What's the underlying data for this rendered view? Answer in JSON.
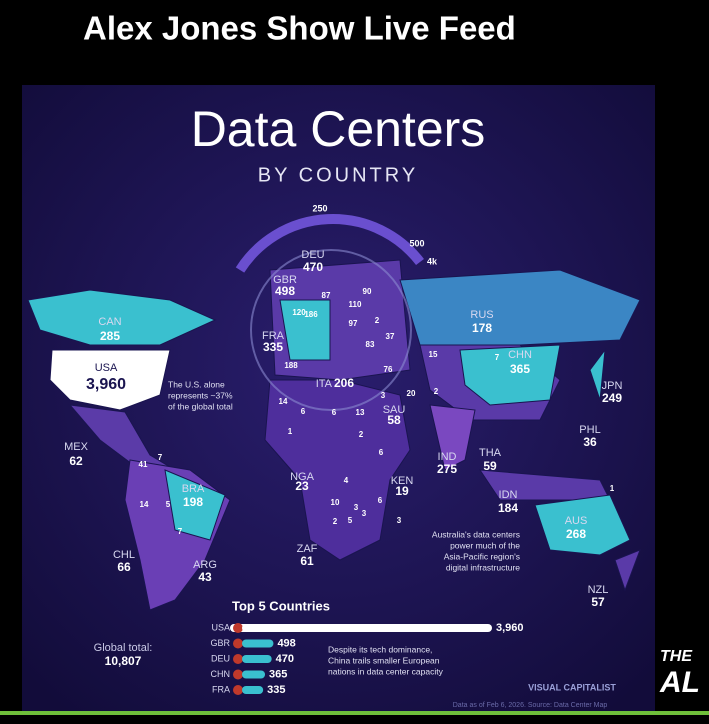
{
  "header": {
    "title": "Alex Jones Show Live Feed"
  },
  "infographic": {
    "title": "Data Centers",
    "subtitle": "BY COUNTRY",
    "scale_labels": [
      "250",
      "500",
      "4k"
    ],
    "countries": [
      {
        "code": "CAN",
        "value": "285"
      },
      {
        "code": "USA",
        "value": "3,960"
      },
      {
        "code": "MEX",
        "value": "62"
      },
      {
        "code": "BRA",
        "value": "198"
      },
      {
        "code": "CHL",
        "value": "66"
      },
      {
        "code": "ARG",
        "value": "43"
      },
      {
        "code": "GBR",
        "value": "498"
      },
      {
        "code": "DEU",
        "value": "470"
      },
      {
        "code": "FRA",
        "value": "335"
      },
      {
        "code": "ITA",
        "value": "206"
      },
      {
        "code": "RUS",
        "value": "178"
      },
      {
        "code": "CHN",
        "value": "365"
      },
      {
        "code": "JPN",
        "value": "249"
      },
      {
        "code": "PHL",
        "value": "36"
      },
      {
        "code": "IND",
        "value": "275"
      },
      {
        "code": "THA",
        "value": "59"
      },
      {
        "code": "IDN",
        "value": "184"
      },
      {
        "code": "AUS",
        "value": "268"
      },
      {
        "code": "NZL",
        "value": "57"
      },
      {
        "code": "SAU",
        "value": "58"
      },
      {
        "code": "ZAF",
        "value": "61"
      },
      {
        "code": "NGA",
        "value": "23"
      },
      {
        "code": "KEN",
        "value": "19"
      }
    ],
    "small_values": [
      "87",
      "90",
      "110",
      "120",
      "186",
      "97",
      "37",
      "2",
      "83",
      "76",
      "188",
      "15",
      "7",
      "20",
      "2",
      "14",
      "6",
      "6",
      "13",
      "3",
      "1",
      "2",
      "6",
      "4",
      "41",
      "7",
      "14",
      "5",
      "7",
      "10",
      "3",
      "6",
      "2",
      "5",
      "3",
      "3",
      "1"
    ],
    "usa_note": [
      "The U.S. alone",
      "represents ~37%",
      "of the global total"
    ],
    "aus_note": [
      "Australia's data centers",
      "power much of the",
      "Asia-Pacific region's",
      "digital infrastructure"
    ],
    "top5": {
      "title": "Top 5 Countries",
      "categories": [
        "USA",
        "GBR",
        "DEU",
        "CHN",
        "FRA"
      ],
      "values": [
        3960,
        498,
        470,
        365,
        335
      ],
      "value_labels": [
        "3,960",
        "498",
        "470",
        "365",
        "335"
      ]
    },
    "global_total": {
      "label": "Global total:",
      "value": "10,807"
    },
    "china_note": [
      "Despite its tech dominance,",
      "China trails smaller European",
      "nations in data center capacity"
    ],
    "source": "Data as of Feb 6, 2026. Source: Data Center Map",
    "brand": "VISUAL CAPITALIST"
  },
  "overlay": {
    "logo_top": "THE",
    "logo_bottom": "AL"
  }
}
